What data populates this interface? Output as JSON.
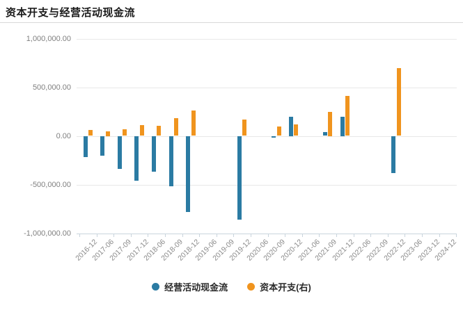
{
  "header": {
    "title": "资本开支与经营活动现金流"
  },
  "chart_data": {
    "type": "bar",
    "title": "资本开支与经营活动现金流",
    "categories": [
      "2016-12",
      "2017-06",
      "2017-09",
      "2017-12",
      "2018-06",
      "2018-09",
      "2018-12",
      "2019-06",
      "2019-09",
      "2019-12",
      "2020-06",
      "2020-09",
      "2020-12",
      "2021-06",
      "2021-09",
      "2021-12",
      "2022-06",
      "2022-09",
      "2022-12",
      "2023-06",
      "2023-12",
      "2024-12"
    ],
    "series": [
      {
        "name": "经营活动现金流",
        "axis": "left",
        "color": "#2b7ba3",
        "values": [
          -220000,
          -200000,
          -340000,
          -460000,
          -370000,
          -520000,
          -780000,
          null,
          null,
          -860000,
          null,
          -15000,
          200000,
          null,
          40000,
          200000,
          null,
          null,
          -385000,
          null,
          null,
          null
        ]
      },
      {
        "name": "资本开支(右)",
        "axis": "right",
        "color": "#f0941e",
        "values": [
          60000,
          50000,
          70000,
          110000,
          105000,
          180000,
          260000,
          null,
          null,
          170000,
          null,
          95000,
          115000,
          null,
          250000,
          410000,
          null,
          null,
          695000,
          null,
          null,
          null
        ]
      }
    ],
    "y_axis": {
      "tick_labels": [
        "1,000,000.00",
        "500,000.00",
        "0.00",
        "-500,000.00",
        "-1,000,000.00"
      ],
      "tick_values": [
        1000000,
        500000,
        0,
        -500000,
        -1000000
      ],
      "ylim": [
        -1000000,
        1000000
      ]
    },
    "grid": "horizontal",
    "legend_position": "bottom"
  },
  "colors": {
    "grid": "#e8e8e8",
    "axis": "#c9d4dd",
    "title": "#1a1a1a",
    "divider": "#d8d8d8",
    "y_label": "#7f7f7f",
    "x_label": "#8a8a8a",
    "legend_text": "#2a2a2a"
  }
}
